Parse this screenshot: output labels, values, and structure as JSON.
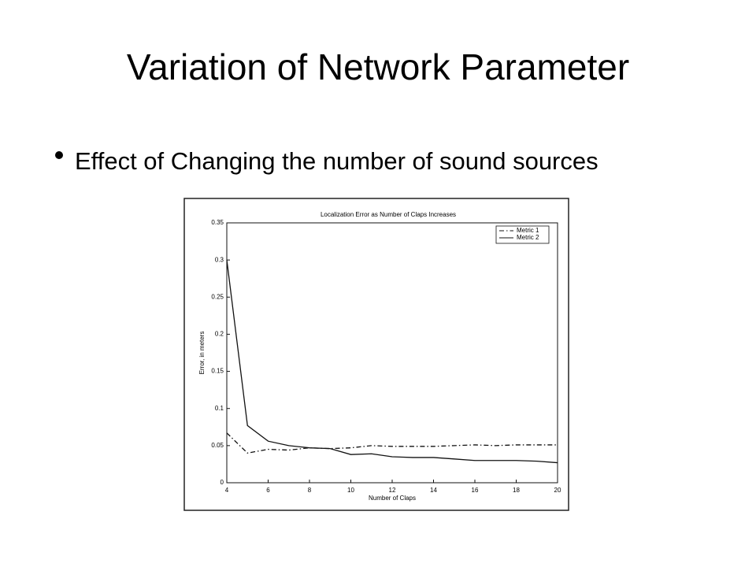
{
  "slide": {
    "title": "Variation of Network Parameter",
    "bullets": [
      "Effect of Changing the number of sound sources"
    ]
  },
  "chart_data": {
    "type": "line",
    "title": "Localization Error as Number of Claps Increases",
    "x_label": "Number of Claps",
    "y_label": "Error, in meters",
    "x": [
      4,
      5,
      6,
      7,
      8,
      9,
      10,
      11,
      12,
      13,
      14,
      15,
      16,
      17,
      18,
      19,
      20
    ],
    "series": [
      {
        "name": "Metric 1",
        "color": "#111111",
        "style": "dashdot",
        "values": [
          0.067,
          0.04,
          0.045,
          0.044,
          0.047,
          0.046,
          0.047,
          0.05,
          0.049,
          0.049,
          0.049,
          0.05,
          0.051,
          0.05,
          0.051,
          0.051,
          0.051
        ]
      },
      {
        "name": "Metric 2",
        "color": "#111111",
        "style": "solid",
        "values": [
          0.3,
          0.077,
          0.056,
          0.05,
          0.047,
          0.046,
          0.038,
          0.039,
          0.035,
          0.034,
          0.034,
          0.032,
          0.03,
          0.03,
          0.03,
          0.029,
          0.027
        ]
      }
    ],
    "xlim": [
      4,
      20
    ],
    "xticks": [
      4,
      6,
      8,
      10,
      12,
      14,
      16,
      18,
      20
    ],
    "ylim": [
      0,
      0.35
    ],
    "yticks": [
      0,
      0.05,
      0.1,
      0.15,
      0.2,
      0.25,
      0.3,
      0.35
    ],
    "legend": "top-right",
    "grid": false
  }
}
